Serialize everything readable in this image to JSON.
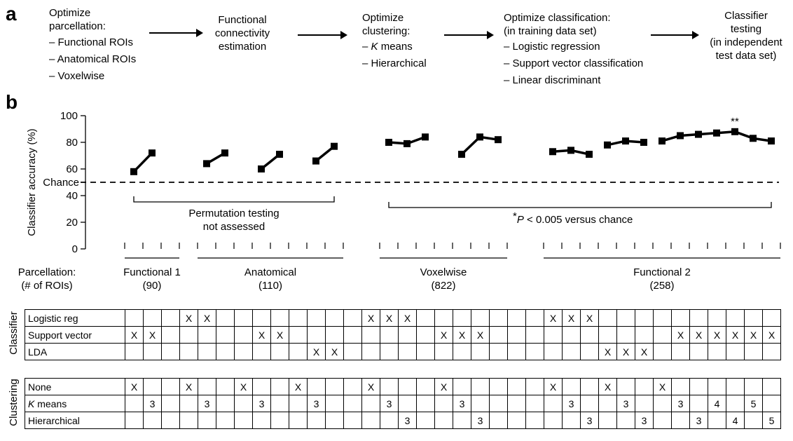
{
  "panel_a": {
    "label": "a",
    "steps": [
      {
        "lines": [
          "Optimize",
          "parcellation:",
          "– Functional ROIs",
          "– Anatomical ROIs",
          "– Voxelwise"
        ]
      },
      {
        "lines": [
          "Functional",
          "connectivity",
          "estimation"
        ]
      },
      {
        "lines": [
          "Optimize",
          "clustering:",
          "– K means",
          "– Hierarchical"
        ]
      },
      {
        "lines": [
          "Optimize classification:",
          "(in training data set)",
          "– Logistic regression",
          "– Support vector classification",
          "– Linear discriminant"
        ]
      },
      {
        "lines": [
          "Classifier",
          "testing",
          "(in independent",
          "test data set)"
        ]
      }
    ]
  },
  "panel_b": {
    "label": "b"
  },
  "chart_data": {
    "type": "line",
    "ylabel": "Classifier accuracy (%)",
    "yticks": [
      "0",
      "20",
      "40",
      "60",
      "80",
      "100"
    ],
    "ylim": [
      0,
      100
    ],
    "chance_label": "Chance",
    "chance_value": 50,
    "series": [
      {
        "x": [
          1,
          2
        ],
        "y": [
          58,
          72
        ]
      },
      {
        "x": [
          5,
          6
        ],
        "y": [
          64,
          72
        ]
      },
      {
        "x": [
          8,
          9
        ],
        "y": [
          60,
          71
        ]
      },
      {
        "x": [
          11,
          12
        ],
        "y": [
          66,
          77
        ]
      },
      {
        "x": [
          15,
          16,
          17
        ],
        "y": [
          80,
          79,
          84
        ]
      },
      {
        "x": [
          19,
          20,
          21
        ],
        "y": [
          71,
          84,
          82
        ]
      },
      {
        "x": [
          24,
          25,
          26
        ],
        "y": [
          73,
          74,
          71
        ]
      },
      {
        "x": [
          27,
          28,
          29
        ],
        "y": [
          78,
          81,
          80
        ]
      },
      {
        "x": [
          30,
          31,
          32,
          33,
          34,
          35,
          36
        ],
        "y": [
          81,
          85,
          86,
          87,
          88,
          83,
          81
        ]
      }
    ],
    "significance_marker": {
      "x": 34,
      "text": "**"
    },
    "annotations": {
      "permutation_text": [
        "Permutation testing",
        "not assessed"
      ],
      "pvalue_star": "*",
      "pvalue_text": "P < 0.005 versus chance"
    },
    "parcellation_header": [
      "Parcellation:",
      "(# of ROIs)"
    ],
    "groups": [
      {
        "name": "Functional 1",
        "count": "(90)"
      },
      {
        "name": "Anatomical",
        "count": "(110)"
      },
      {
        "name": "Voxelwise",
        "count": "(822)"
      },
      {
        "name": "Functional 2",
        "count": "(258)"
      }
    ]
  },
  "classifier_table": {
    "side_label": "Classifier",
    "rows": [
      {
        "label": "Logistic reg",
        "cells": [
          "",
          "",
          "",
          "",
          "X",
          "X",
          "",
          "",
          "",
          "",
          "",
          "",
          "",
          "",
          "X",
          "X",
          "X",
          "",
          "",
          "",
          "",
          "",
          "",
          "",
          "X",
          "X",
          "X",
          "",
          "",
          "",
          "",
          "",
          "",
          "",
          "",
          "",
          ""
        ]
      },
      {
        "label": "Support vector",
        "cells": [
          "",
          "X",
          "X",
          "",
          "",
          "",
          "",
          "",
          "X",
          "X",
          "",
          "",
          "",
          "",
          "",
          "",
          "",
          "",
          "X",
          "X",
          "X",
          "",
          "",
          "",
          "",
          "",
          "",
          "",
          "",
          "",
          "",
          "X",
          "X",
          "X",
          "X",
          "X",
          "X"
        ]
      },
      {
        "label": "LDA",
        "cells": [
          "",
          "",
          "",
          "",
          "",
          "",
          "",
          "",
          "",
          "",
          "",
          "X",
          "X",
          "",
          "",
          "",
          "",
          "",
          "",
          "",
          "",
          "",
          "",
          "",
          "",
          "",
          "",
          "X",
          "X",
          "X",
          "",
          "",
          "",
          "",
          "",
          "",
          ""
        ]
      }
    ]
  },
  "clustering_table": {
    "side_label": "Clustering",
    "rows": [
      {
        "label": "None",
        "cells": [
          "",
          "X",
          "",
          "",
          "X",
          "",
          "",
          "X",
          "",
          "",
          "X",
          "",
          "",
          "",
          "X",
          "",
          "",
          "",
          "X",
          "",
          "",
          "",
          "",
          "",
          "X",
          "",
          "",
          "X",
          "",
          "",
          "X",
          "",
          "",
          "",
          "",
          "",
          ""
        ]
      },
      {
        "label": "K means",
        "label_prefix": "K",
        "label_suffix": " means",
        "cells": [
          "",
          "",
          "3",
          "",
          "",
          "3",
          "",
          "",
          "3",
          "",
          "",
          "3",
          "",
          "",
          "",
          "3",
          "",
          "",
          "",
          "3",
          "",
          "",
          "",
          "",
          "",
          "3",
          "",
          "",
          "3",
          "",
          "",
          "3",
          "",
          "4",
          "",
          "5",
          ""
        ]
      },
      {
        "label": "Hierarchical",
        "cells": [
          "",
          "",
          "",
          "",
          "",
          "",
          "",
          "",
          "",
          "",
          "",
          "",
          "",
          "",
          "",
          "",
          "3",
          "",
          "",
          "",
          "3",
          "",
          "",
          "",
          "",
          "",
          "3",
          "",
          "",
          "3",
          "",
          "",
          "3",
          "",
          "4",
          "",
          "5"
        ]
      }
    ]
  }
}
